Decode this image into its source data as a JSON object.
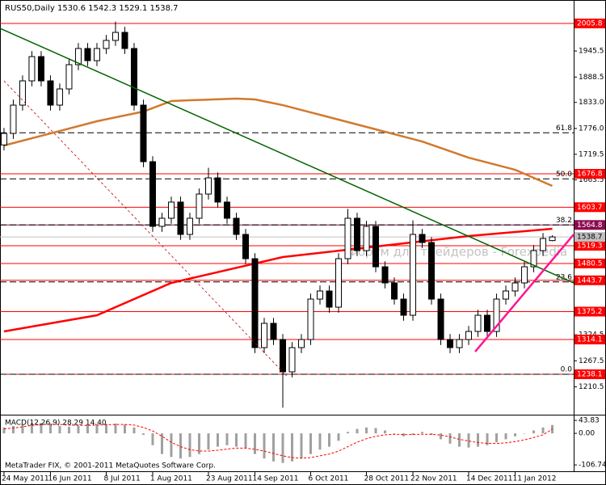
{
  "chart_data": {
    "type": "candlestick",
    "title": "RUS50,Daily  1530.6 1542.3 1529.1 1538.7",
    "categories": [
      "24 May 2011",
      null,
      null,
      null,
      null,
      "16 Jun 2011",
      null,
      null,
      null,
      null,
      null,
      "8 Jul 2011",
      null,
      null,
      null,
      null,
      "1 Aug 2011",
      null,
      null,
      null,
      null,
      null,
      "23 Aug 2011",
      null,
      null,
      null,
      null,
      "14 Sep 2011",
      null,
      null,
      null,
      null,
      null,
      "6 Oct 2011",
      null,
      null,
      null,
      null,
      null,
      "28 Oct 2011",
      null,
      null,
      null,
      null,
      "22 Nov 2011",
      null,
      null,
      null,
      null,
      null,
      "14 Dec 2011",
      null,
      null,
      null,
      null,
      "11 Jan 2012",
      null,
      null,
      null,
      null
    ],
    "candles": [
      [
        1740.0,
        1777.2,
        1728.0,
        1765.2
      ],
      [
        1765.2,
        1839.1,
        1753.2,
        1827.1
      ],
      [
        1827.1,
        1892.2,
        1815.1,
        1880.2
      ],
      [
        1880.2,
        1945.3,
        1868.2,
        1933.3
      ],
      [
        1933.3,
        1945.3,
        1868.2,
        1880.2
      ],
      [
        1880.2,
        1892.2,
        1815.1,
        1827.1
      ],
      [
        1827.1,
        1874.5,
        1815.1,
        1862.5
      ],
      [
        1862.5,
        1927.6,
        1850.5,
        1915.6
      ],
      [
        1915.6,
        1963.0,
        1903.6,
        1951.0
      ],
      [
        1951.0,
        1963.0,
        1912.4,
        1924.4
      ],
      [
        1924.4,
        1963.0,
        1912.4,
        1951.0
      ],
      [
        1951.0,
        1980.7,
        1939.0,
        1968.7
      ],
      [
        1968.7,
        2010.0,
        1956.7,
        1986.3
      ],
      [
        1986.3,
        1998.3,
        1939.0,
        1951.0
      ],
      [
        1951.0,
        1963.0,
        1815.1,
        1827.1
      ],
      [
        1827.1,
        1839.1,
        1691.3,
        1703.3
      ],
      [
        1703.3,
        1715.3,
        1549.8,
        1561.8
      ],
      [
        1561.8,
        1591.5,
        1549.8,
        1579.5
      ],
      [
        1579.5,
        1626.9,
        1567.5,
        1614.9
      ],
      [
        1614.9,
        1626.9,
        1532.1,
        1544.1
      ],
      [
        1544.1,
        1591.5,
        1532.1,
        1579.5
      ],
      [
        1579.5,
        1644.5,
        1567.5,
        1632.5
      ],
      [
        1632.5,
        1690.0,
        1620.5,
        1667.9
      ],
      [
        1667.9,
        1679.9,
        1602.9,
        1614.9
      ],
      [
        1614.9,
        1626.9,
        1567.5,
        1579.5
      ],
      [
        1579.5,
        1591.5,
        1532.1,
        1544.1
      ],
      [
        1544.1,
        1556.1,
        1479.0,
        1491.0
      ],
      [
        1491.0,
        1503.0,
        1284.4,
        1296.4
      ],
      [
        1296.4,
        1361.5,
        1284.4,
        1349.5
      ],
      [
        1349.5,
        1361.5,
        1302.1,
        1314.1
      ],
      [
        1314.1,
        1326.1,
        1165.0,
        1243.4
      ],
      [
        1243.4,
        1308.4,
        1231.4,
        1296.4
      ],
      [
        1296.4,
        1326.1,
        1284.4,
        1314.1
      ],
      [
        1314.1,
        1414.6,
        1302.1,
        1402.6
      ],
      [
        1402.6,
        1432.3,
        1390.6,
        1420.3
      ],
      [
        1420.3,
        1432.3,
        1372.9,
        1384.9
      ],
      [
        1384.9,
        1503.0,
        1372.9,
        1491.0
      ],
      [
        1491.0,
        1600.0,
        1479.0,
        1579.5
      ],
      [
        1579.5,
        1591.5,
        1496.7,
        1508.7
      ],
      [
        1508.7,
        1573.8,
        1496.7,
        1561.8
      ],
      [
        1561.8,
        1573.8,
        1461.3,
        1473.3
      ],
      [
        1473.3,
        1485.3,
        1426.0,
        1438.0
      ],
      [
        1438.0,
        1450.0,
        1390.6,
        1402.6
      ],
      [
        1402.6,
        1414.6,
        1355.2,
        1367.2
      ],
      [
        1367.2,
        1575.0,
        1355.2,
        1544.1
      ],
      [
        1544.1,
        1556.1,
        1514.4,
        1526.4
      ],
      [
        1526.4,
        1538.4,
        1390.6,
        1402.6
      ],
      [
        1402.6,
        1414.6,
        1302.1,
        1314.1
      ],
      [
        1314.1,
        1326.1,
        1284.4,
        1296.4
      ],
      [
        1296.4,
        1326.1,
        1284.4,
        1314.1
      ],
      [
        1314.1,
        1343.8,
        1302.1,
        1331.8
      ],
      [
        1331.8,
        1379.2,
        1319.8,
        1367.2
      ],
      [
        1367.2,
        1379.2,
        1319.8,
        1331.8
      ],
      [
        1331.8,
        1414.6,
        1319.8,
        1402.6
      ],
      [
        1402.6,
        1432.3,
        1390.6,
        1420.3
      ],
      [
        1420.3,
        1450.0,
        1408.3,
        1438.0
      ],
      [
        1438.0,
        1485.3,
        1426.0,
        1473.3
      ],
      [
        1473.3,
        1520.7,
        1461.3,
        1508.7
      ],
      [
        1508.7,
        1547.2,
        1496.7,
        1535.2
      ],
      [
        1530.6,
        1542.3,
        1529.1,
        1538.7
      ]
    ],
    "up_color": "#ffffff",
    "down_color": "#000000",
    "xlim": [
      -0.43,
      61.3
    ],
    "ylim": [
      1151.4,
      2053.6
    ],
    "yticks": [
      1945.5,
      1888.5,
      {
        "value": 1833,
        "label": "1833.0"
      },
      {
        "value": 1776,
        "label": "1776.0"
      },
      1719.5,
      1663.5,
      1324.5,
      1267.5,
      1210.5
    ],
    "levels": [
      {
        "value": 2005.8,
        "color": "#ff0000"
      },
      {
        "value": 1676.8,
        "color": "#ff0000"
      },
      {
        "value": 1603.7,
        "color": "#ff0000"
      },
      {
        "value": 1564.8,
        "color": "#8b0a50"
      },
      {
        "value": 1519.3,
        "color": "#ff0000"
      },
      {
        "value": 1480.5,
        "color": "#ff0000"
      },
      {
        "value": 1443.7,
        "color": "#ff0000"
      },
      {
        "value": 1375.2,
        "color": "#ff0000"
      },
      {
        "value": 1314.1,
        "color": "#ff0000"
      },
      {
        "value": 1238.1,
        "color": "#ff0000"
      }
    ],
    "current": {
      "value": 1538.7,
      "color": "#c0c0c0"
    },
    "fib": [
      {
        "value": 1766.5,
        "label": "61.8"
      },
      {
        "value": 1665.7,
        "label": "50.0"
      },
      {
        "value": 1564.8,
        "label": "38.2"
      },
      {
        "value": 1440.1,
        "label": "23.6"
      },
      {
        "value": 1238.1,
        "label": "0.0"
      }
    ],
    "ma": [
      {
        "color": "#d2792c",
        "x": [
          0,
          5,
          10,
          15,
          18,
          20,
          25,
          27,
          30,
          35,
          40,
          45,
          50,
          55,
          59
        ],
        "values": [
          1738.7,
          1765.2,
          1791.8,
          1813.0,
          1836.0,
          1837.7,
          1841.3,
          1839.5,
          1827.1,
          1800.6,
          1774.1,
          1747.5,
          1712.1,
          1685.6,
          1650.2
        ]
      },
      {
        "color": "#ff0000",
        "x": [
          0,
          10,
          18,
          30,
          40,
          50,
          59
        ],
        "values": [
          1331.8,
          1367.2,
          1438.0,
          1494.6,
          1517.6,
          1540.6,
          1556.5
        ]
      }
    ],
    "trendlines": [
      {
        "color": "#006400",
        "dash": false,
        "width": 1.5,
        "x": [
          -0.43,
          61.3
        ],
        "values": [
          1995.2,
          1437.9
        ]
      },
      {
        "color": "#ff1493",
        "dash": false,
        "width": 2.5,
        "x": [
          50.7,
          61.3
        ],
        "values": [
          1287.6,
          1544.1
        ]
      },
      {
        "color": "#c00000",
        "dash": true,
        "width": 0.8,
        "x": [
          0,
          30.4
        ],
        "values": [
          1880.2,
          1234.5
        ]
      }
    ],
    "watermark": "Форум для трейдеров - Forexpedia",
    "footer": "MetaTrader FIX, © 2001-2011 MetaQuotes Software Corp.",
    "macd": {
      "title": "MACD(12,26,9) 28.29 14.40",
      "ylim": [
        -120,
        55
      ],
      "yticks": [
        43.83,
        {
          "value": 0,
          "label": "0.00"
        },
        -106.74
      ],
      "hist_color": "#a0a0a0",
      "signal_color": "#ff0000",
      "histogram": [
        20,
        25,
        30,
        35,
        35,
        30,
        25,
        22,
        25,
        28,
        30,
        32,
        33,
        30,
        20,
        -5,
        -40,
        -70,
        -80,
        -85,
        -80,
        -70,
        -55,
        -45,
        -40,
        -45,
        -50,
        -70,
        -85,
        -95,
        -100,
        -95,
        -85,
        -70,
        -55,
        -45,
        -25,
        5,
        15,
        20,
        18,
        10,
        0,
        -10,
        -5,
        5,
        -5,
        -20,
        -35,
        -45,
        -48,
        -45,
        -40,
        -30,
        -20,
        -10,
        0,
        10,
        20,
        28.29
      ],
      "signal": [
        15,
        18,
        22,
        27,
        30,
        31,
        30,
        28,
        27,
        27,
        28,
        29,
        30,
        30,
        28,
        20,
        8,
        -10,
        -30,
        -45,
        -55,
        -60,
        -60,
        -57,
        -53,
        -50,
        -50,
        -54,
        -60,
        -68,
        -76,
        -82,
        -84,
        -82,
        -76,
        -70,
        -60,
        -45,
        -30,
        -18,
        -10,
        -5,
        -3,
        -4,
        -4,
        -3,
        -3,
        -6,
        -12,
        -20,
        -26,
        -31,
        -34,
        -34,
        -32,
        -28,
        -22,
        -14,
        -5,
        14.4
      ]
    }
  }
}
